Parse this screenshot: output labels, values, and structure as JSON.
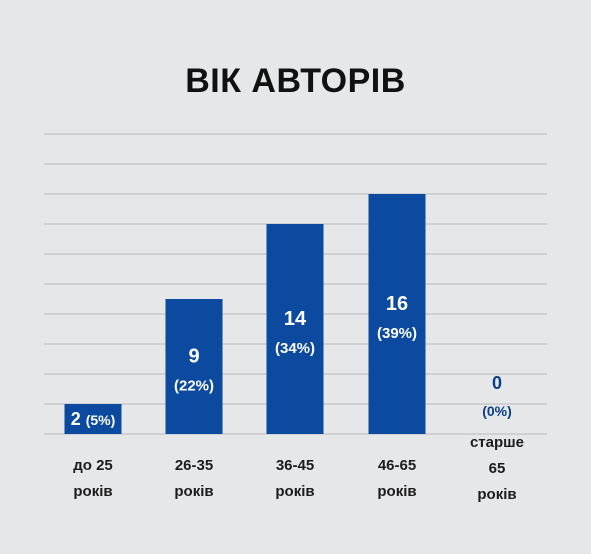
{
  "chart_data": {
    "type": "bar",
    "title": "ВІК АВТОРІВ",
    "xlabel": "",
    "ylabel": "",
    "categories": [
      [
        "до 25",
        "років"
      ],
      [
        "26-35",
        "років"
      ],
      [
        "36-45",
        "років"
      ],
      [
        "46-65",
        "років"
      ],
      [
        "старше",
        "65",
        "років"
      ]
    ],
    "values": [
      2,
      9,
      14,
      16,
      0
    ],
    "percent_labels": [
      "(5%)",
      "(22%)",
      "(34%)",
      "(39%)",
      "(0%)"
    ],
    "ylim": [
      0,
      20
    ],
    "grid": true,
    "legend": "none",
    "colors": {
      "bar": "#0b4a9e",
      "bar_label": "#ffffff",
      "outside_label": "#0b3f86",
      "category_label": "#1c1c1c",
      "grid": "#bfc1c4",
      "background": "#e6e7e9"
    }
  }
}
